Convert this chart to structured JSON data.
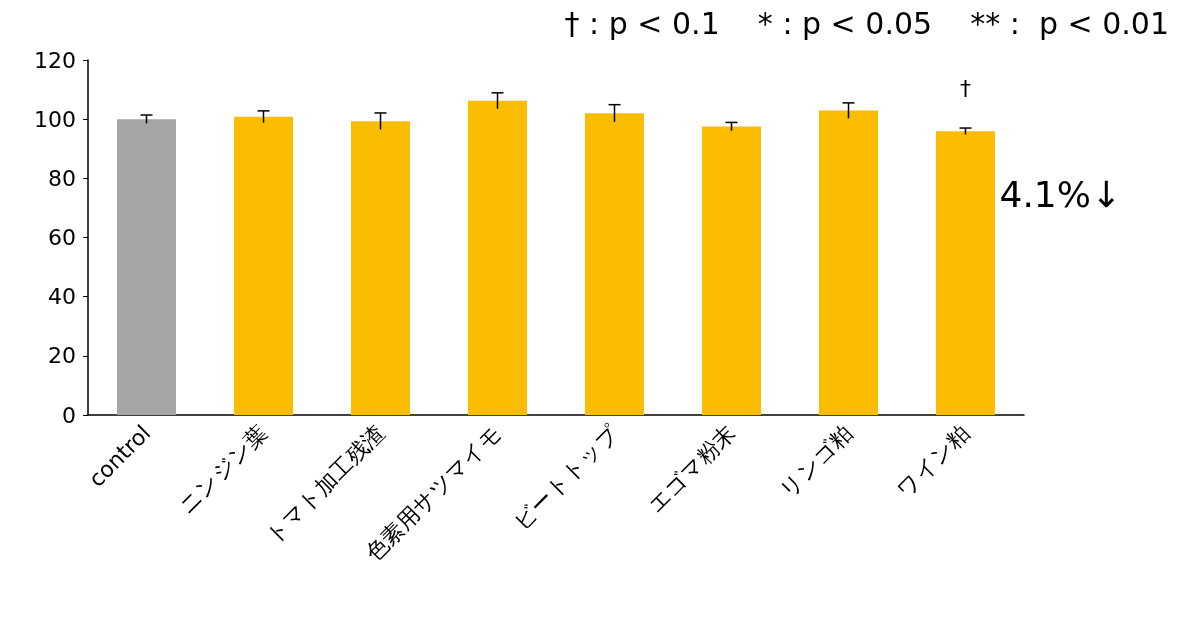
{
  "chart_data": {
    "type": "bar",
    "categories": [
      "control",
      "ニンジン葉",
      "トマト加工残渣",
      "色素用サツマイモ",
      "ビートトップ",
      "エゴマ粉末",
      "リンゴ粕",
      "ワイン粕"
    ],
    "values": [
      100,
      100.8,
      99.3,
      106.2,
      102,
      97.5,
      102.9,
      95.9
    ],
    "errors": [
      1.4,
      2.0,
      2.8,
      2.7,
      2.9,
      1.4,
      2.6,
      1.1
    ],
    "colors": [
      "#a5a5a5",
      "#fabd02",
      "#fabd02",
      "#fabd02",
      "#fabd02",
      "#fabd02",
      "#fabd02",
      "#fabd02"
    ],
    "ylim": [
      0,
      120
    ],
    "yticks": [
      0,
      20,
      40,
      60,
      80,
      100,
      120
    ],
    "grid": false,
    "annotations": [
      "† : p < 0.1    * : p < 0.05    ** :  p < 0.01",
      "†",
      "4.1%↓"
    ]
  }
}
